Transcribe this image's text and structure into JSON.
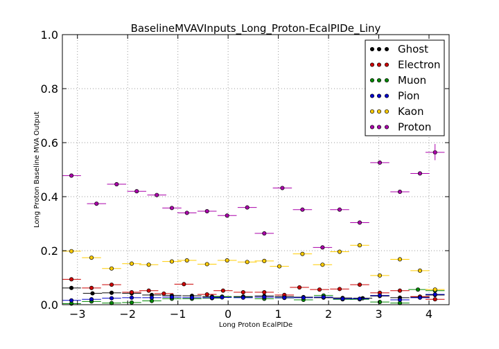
{
  "chart_data": {
    "type": "scatter",
    "title": "BaselineMVAVInputs_Long_Proton-EcalPIDe_Liny",
    "xlabel": "Long Proton EcalPIDe",
    "ylabel": "Long Proton Baseline MVA Output",
    "xlim": [
      -3.3,
      4.4
    ],
    "ylim": [
      0.0,
      1.0
    ],
    "xticks": [
      -3,
      -2,
      -1,
      0,
      1,
      2,
      3,
      4
    ],
    "xtick_labels": [
      "−3",
      "−2",
      "−1",
      "0",
      "1",
      "2",
      "3",
      "4"
    ],
    "yticks": [
      0.0,
      0.2,
      0.4,
      0.6,
      0.8,
      1.0
    ],
    "ytick_labels": [
      "0.0",
      "0.2",
      "0.4",
      "0.6",
      "0.8",
      "1.0"
    ],
    "grid": true,
    "legend_position": "top-right",
    "bin_half_width": 0.19,
    "x": [
      -3.12,
      -2.62,
      -2.12,
      -1.62,
      -1.12,
      -0.62,
      -0.12,
      0.38,
      0.88,
      1.38,
      1.88,
      2.38,
      2.88,
      3.38,
      3.88
    ],
    "series": [
      {
        "name": "Ghost",
        "color": "#000000",
        "points": [
          [
            -3.12,
            0.062
          ],
          [
            -2.7,
            0.042
          ],
          [
            -2.32,
            0.044
          ],
          [
            -1.92,
            0.042
          ],
          [
            -1.52,
            0.036
          ],
          [
            -1.12,
            0.034
          ],
          [
            -0.72,
            0.033
          ],
          [
            -0.32,
            0.03
          ],
          [
            -0.12,
            0.028
          ],
          [
            0.3,
            0.03
          ],
          [
            0.72,
            0.032
          ],
          [
            1.12,
            0.03
          ],
          [
            1.5,
            0.028
          ],
          [
            1.9,
            0.026
          ],
          [
            2.28,
            0.025
          ],
          [
            2.68,
            0.024
          ],
          [
            3.02,
            0.032
          ],
          [
            3.42,
            0.026
          ],
          [
            3.82,
            0.028
          ],
          [
            4.12,
            0.036
          ]
        ]
      },
      {
        "name": "Electron",
        "color": "#cc0000",
        "points": [
          [
            -3.12,
            0.094
          ],
          [
            -2.72,
            0.062
          ],
          [
            -2.32,
            0.074
          ],
          [
            -1.92,
            0.046
          ],
          [
            -1.58,
            0.052
          ],
          [
            -1.28,
            0.041
          ],
          [
            -0.88,
            0.076
          ],
          [
            -0.42,
            0.038
          ],
          [
            -0.1,
            0.052
          ],
          [
            0.3,
            0.046
          ],
          [
            0.72,
            0.046
          ],
          [
            1.12,
            0.036
          ],
          [
            1.42,
            0.064
          ],
          [
            1.82,
            0.056
          ],
          [
            2.22,
            0.058
          ],
          [
            2.62,
            0.074
          ],
          [
            3.02,
            0.044
          ],
          [
            3.42,
            0.052
          ],
          [
            3.82,
            0.03
          ],
          [
            4.12,
            0.02
          ]
        ]
      },
      {
        "name": "Muon",
        "color": "#008800",
        "points": [
          [
            -3.12,
            0.004
          ],
          [
            -2.72,
            0.012
          ],
          [
            -2.32,
            0.006
          ],
          [
            -1.92,
            0.008
          ],
          [
            -1.52,
            0.014
          ],
          [
            -1.12,
            0.022
          ],
          [
            -0.72,
            0.022
          ],
          [
            -0.32,
            0.024
          ],
          [
            -0.12,
            0.03
          ],
          [
            0.3,
            0.028
          ],
          [
            0.72,
            0.022
          ],
          [
            1.12,
            0.025
          ],
          [
            1.5,
            0.018
          ],
          [
            1.9,
            0.034
          ],
          [
            2.28,
            0.02
          ],
          [
            2.62,
            0.02
          ],
          [
            3.02,
            0.01
          ],
          [
            3.42,
            0.006
          ],
          [
            3.78,
            0.056
          ],
          [
            4.12,
            0.052
          ]
        ]
      },
      {
        "name": "Pion",
        "color": "#0000cc",
        "points": [
          [
            -3.12,
            0.016
          ],
          [
            -2.72,
            0.02
          ],
          [
            -2.32,
            0.024
          ],
          [
            -1.92,
            0.026
          ],
          [
            -1.52,
            0.026
          ],
          [
            -1.12,
            0.028
          ],
          [
            -0.72,
            0.026
          ],
          [
            -0.32,
            0.026
          ],
          [
            -0.12,
            0.027
          ],
          [
            0.3,
            0.026
          ],
          [
            0.72,
            0.028
          ],
          [
            1.12,
            0.026
          ],
          [
            1.5,
            0.026
          ],
          [
            1.9,
            0.028
          ],
          [
            2.28,
            0.022
          ],
          [
            2.62,
            0.022
          ],
          [
            3.02,
            0.034
          ],
          [
            3.42,
            0.018
          ],
          [
            3.82,
            0.026
          ],
          [
            4.12,
            0.038
          ]
        ]
      },
      {
        "name": "Kaon",
        "color": "#ffcc00",
        "points": [
          [
            -3.12,
            0.198
          ],
          [
            -2.72,
            0.174
          ],
          [
            -2.32,
            0.134
          ],
          [
            -1.92,
            0.152
          ],
          [
            -1.58,
            0.148
          ],
          [
            -1.12,
            0.16
          ],
          [
            -0.82,
            0.164
          ],
          [
            -0.42,
            0.15
          ],
          [
            -0.02,
            0.164
          ],
          [
            0.38,
            0.158
          ],
          [
            0.72,
            0.162
          ],
          [
            1.02,
            0.142
          ],
          [
            1.48,
            0.188
          ],
          [
            1.88,
            0.148
          ],
          [
            2.22,
            0.196
          ],
          [
            2.62,
            0.22
          ],
          [
            3.02,
            0.108
          ],
          [
            3.42,
            0.168
          ],
          [
            3.82,
            0.126
          ],
          [
            4.12,
            0.056
          ]
        ]
      },
      {
        "name": "Proton",
        "color": "#aa00aa",
        "points": [
          [
            -3.12,
            0.478
          ],
          [
            -2.62,
            0.374
          ],
          [
            -2.22,
            0.446
          ],
          [
            -1.82,
            0.42
          ],
          [
            -1.42,
            0.406
          ],
          [
            -1.12,
            0.358
          ],
          [
            -0.82,
            0.34
          ],
          [
            -0.42,
            0.346
          ],
          [
            -0.02,
            0.33
          ],
          [
            0.38,
            0.36
          ],
          [
            0.72,
            0.264
          ],
          [
            1.08,
            0.432
          ],
          [
            1.48,
            0.352
          ],
          [
            1.88,
            0.212
          ],
          [
            2.22,
            0.352
          ],
          [
            2.62,
            0.304
          ],
          [
            3.02,
            0.526
          ],
          [
            3.42,
            0.418
          ],
          [
            3.82,
            0.486
          ],
          [
            4.12,
            0.564
          ]
        ]
      }
    ],
    "error_bars": {
      "Proton_last": [
        0.535,
        0.595
      ]
    }
  }
}
